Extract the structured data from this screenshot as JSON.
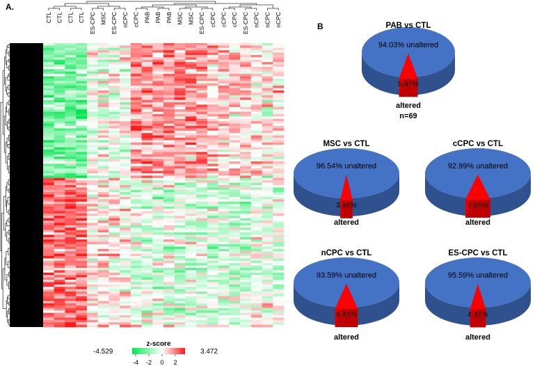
{
  "chart_data": [
    {
      "type": "heatmap",
      "panel_label": "A.",
      "columns": [
        "CTL",
        "CTL",
        "CTL",
        "CTL",
        "ES-CPC",
        "MSC",
        "ES-CPC",
        "nCPC",
        "cCPC",
        "PAB",
        "PAB",
        "PAB",
        "MSC",
        "MSC",
        "ES-CPC",
        "cCPC",
        "cCPC",
        "cCPC",
        "ES-CPC",
        "nCPC",
        "nCPC",
        "nCPC"
      ],
      "row_count": 120,
      "colorbar": {
        "title": "z-score",
        "min_label": "-4.529",
        "max_label": "3.472",
        "ticks": [
          "-4",
          "-2",
          "0",
          "2"
        ],
        "min": -4.529,
        "max": 3.472,
        "low_color": "#00e64d",
        "mid_color": "#ffffff",
        "high_color": "#ff1a1a"
      }
    },
    {
      "type": "pie",
      "panel_label": "B",
      "charts": [
        {
          "title": "PAB vs CTL",
          "unaltered_label": "94.03% unaltered",
          "altered_pct_label": "5.97%",
          "altered_label": "altered",
          "unaltered": 94.03,
          "altered": 5.97,
          "n_label": "n=69"
        },
        {
          "title": "MSC vs CTL",
          "unaltered_label": "96.54% unaltered",
          "altered_pct_label": "3.46%",
          "altered_label": "altered",
          "unaltered": 96.54,
          "altered": 3.46
        },
        {
          "title": "cCPC vs CTL",
          "unaltered_label": "92.99% unaltered",
          "altered_pct_label": "7.01%",
          "altered_label": "altered",
          "unaltered": 92.99,
          "altered": 7.01
        },
        {
          "title": "nCPC vs CTL",
          "unaltered_label": "93.59% unaltered",
          "altered_pct_label": "6.41%",
          "altered_label": "altered",
          "unaltered": 93.59,
          "altered": 6.41
        },
        {
          "title": "ES-CPC vs CTL",
          "unaltered_label": "95.59% unaltered",
          "altered_pct_label": "4.41%",
          "altered_label": "altered",
          "unaltered": 95.59,
          "altered": 4.41
        }
      ],
      "colors": {
        "unaltered_top": "#4472c4",
        "unaltered_side": "#2f528f",
        "altered_top": "#ff0000",
        "altered_side": "#c00000"
      }
    }
  ]
}
